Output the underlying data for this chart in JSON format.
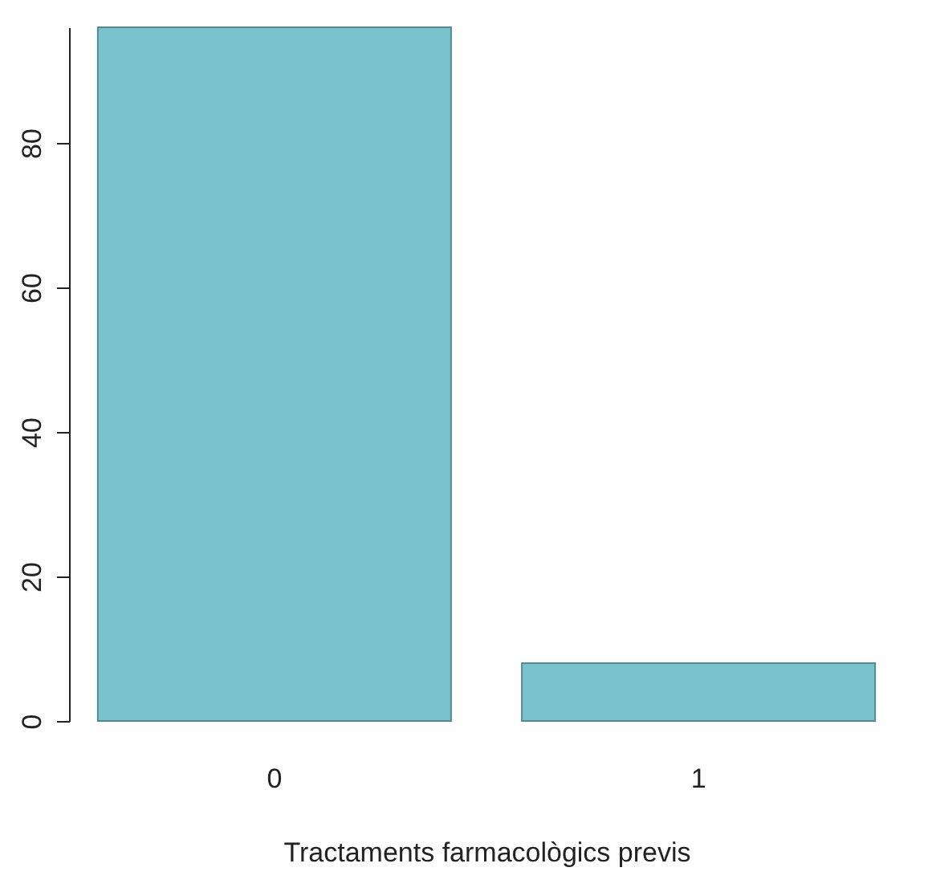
{
  "chart_data": {
    "type": "bar",
    "xlabel": "Tractaments farmacològics previs",
    "categories": [
      "0",
      "1"
    ],
    "values": [
      96,
      8
    ],
    "color": "#7ac3cc",
    "ylim": [
      0,
      96
    ],
    "yticks": [
      0,
      20,
      40,
      60,
      80
    ],
    "grid": false
  }
}
